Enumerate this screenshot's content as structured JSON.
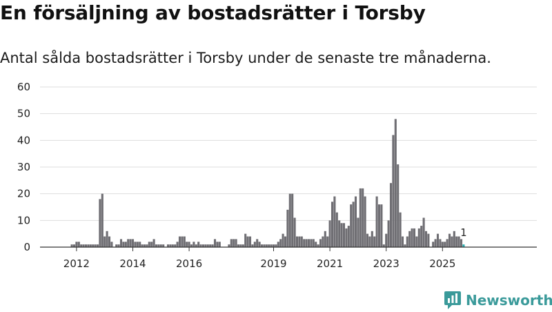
{
  "header": {
    "title": "En försäljning av bostadsrätter i Torsby",
    "subtitle": "Antal sålda bostadsrätter i Torsby under de senaste tre månaderna."
  },
  "brand": {
    "name": "Newsworthy",
    "icon": "newsworthy-logo-icon",
    "color": "#3a9a9a"
  },
  "colors": {
    "bar": "#6f6e73",
    "highlight": "#27aeb0",
    "grid": "#dddddd",
    "baseline": "#333333"
  },
  "chart_data": {
    "type": "bar",
    "title": "En försäljning av bostadsrätter i Torsby",
    "ylim": [
      0,
      60
    ],
    "y_ticks": [
      0,
      10,
      20,
      30,
      40,
      50,
      60
    ],
    "x_ticks": [
      "2012",
      "2014",
      "2016",
      "2019",
      "2021",
      "2023",
      "2025"
    ],
    "x_tick_months": [
      "2012-01",
      "2014-01",
      "2016-01",
      "2019-01",
      "2021-01",
      "2023-01",
      "2025-01"
    ],
    "grid": true,
    "period": "monthly",
    "start_month": "2011-07",
    "values": [
      0,
      0,
      0,
      0,
      1,
      1,
      2,
      2,
      1,
      1,
      1,
      1,
      1,
      1,
      1,
      1,
      18,
      20,
      4,
      6,
      4,
      2,
      0,
      1,
      1,
      3,
      2,
      2,
      3,
      3,
      3,
      2,
      2,
      2,
      1,
      1,
      1,
      2,
      2,
      3,
      1,
      1,
      1,
      1,
      0,
      1,
      1,
      1,
      1,
      2,
      4,
      4,
      4,
      2,
      2,
      1,
      2,
      1,
      2,
      1,
      1,
      1,
      1,
      1,
      1,
      3,
      2,
      2,
      0,
      0,
      0,
      1,
      3,
      3,
      3,
      1,
      1,
      1,
      5,
      4,
      4,
      1,
      2,
      3,
      2,
      1,
      1,
      1,
      1,
      1,
      1,
      1,
      2,
      3,
      5,
      4,
      14,
      20,
      20,
      11,
      4,
      4,
      4,
      3,
      3,
      3,
      3,
      3,
      2,
      1,
      3,
      4,
      6,
      4,
      10,
      17,
      19,
      13,
      10,
      9,
      9,
      7,
      8,
      16,
      17,
      19,
      11,
      22,
      22,
      19,
      5,
      4,
      6,
      4,
      19,
      16,
      16,
      1,
      5,
      10,
      24,
      42,
      48,
      31,
      13,
      4,
      1,
      4,
      6,
      7,
      7,
      4,
      7,
      8,
      11,
      6,
      5,
      0,
      2,
      3,
      5,
      3,
      2,
      2,
      3,
      5,
      4,
      6,
      4,
      4,
      3,
      1
    ],
    "highlight_label": "1"
  }
}
